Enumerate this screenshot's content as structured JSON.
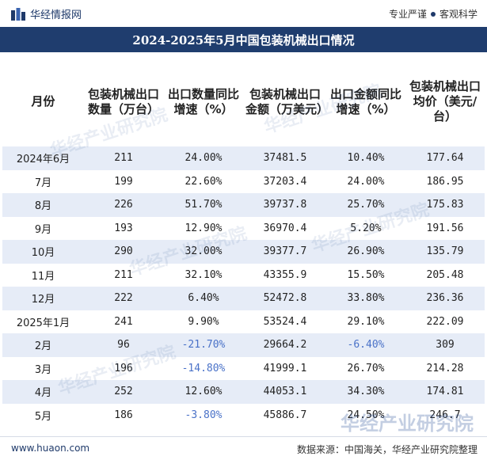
{
  "header": {
    "site_name": "华经情报网",
    "slogan_left": "专业严谨",
    "slogan_right": "客观科学"
  },
  "title": "2024-2025年5月中国包装机械出口情况",
  "table": {
    "columns": [
      "月份",
      "包装机械出口数量（万台）",
      "出口数量同比增速（%）",
      "包装机械出口金额（万美元）",
      "出口金额同比增速（%）",
      "包装机械出口均价（美元/台）"
    ],
    "rows": [
      [
        "2024年6月",
        "211",
        "24.00%",
        "37481.5",
        "10.40%",
        "177.64"
      ],
      [
        "7月",
        "199",
        "22.60%",
        "37203.4",
        "24.00%",
        "186.95"
      ],
      [
        "8月",
        "226",
        "51.70%",
        "39737.8",
        "25.70%",
        "175.83"
      ],
      [
        "9月",
        "193",
        "12.90%",
        "36970.4",
        "5.20%",
        "191.56"
      ],
      [
        "10月",
        "290",
        "32.00%",
        "39377.7",
        "26.90%",
        "135.79"
      ],
      [
        "11月",
        "211",
        "32.10%",
        "43355.9",
        "15.50%",
        "205.48"
      ],
      [
        "12月",
        "222",
        "6.40%",
        "52472.8",
        "33.80%",
        "236.36"
      ],
      [
        "2025年1月",
        "241",
        "9.90%",
        "53524.4",
        "29.10%",
        "222.09"
      ],
      [
        "2月",
        "96",
        "-21.70%",
        "29664.2",
        "-6.40%",
        "309"
      ],
      [
        "3月",
        "196",
        "-14.80%",
        "41999.1",
        "26.70%",
        "214.28"
      ],
      [
        "4月",
        "252",
        "12.60%",
        "44053.1",
        "34.30%",
        "174.81"
      ],
      [
        "5月",
        "186",
        "-3.80%",
        "45886.7",
        "24.50%",
        "246.7"
      ]
    ]
  },
  "watermark": "华经产业研究院",
  "footer": {
    "url": "www.huaon.com",
    "source": "数据来源：中国海关，华经产业研究院整理"
  },
  "colors": {
    "title_bar": "#1f3d6e",
    "row_stripe": "#e6ecf7",
    "negative_text": "#4a72c8"
  },
  "icons": {
    "logo": "huajing-logo-icon"
  }
}
